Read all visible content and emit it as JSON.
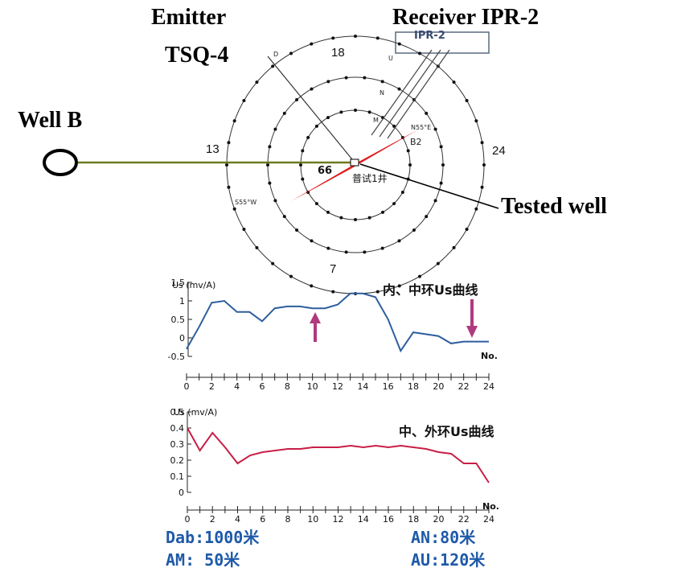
{
  "labels": {
    "emitter_line1": "Emitter",
    "emitter_line2": "TSQ-4",
    "receiver": "Receiver IPR-2",
    "receiver_box": "IPR-2",
    "well_b": "Well B",
    "tested_well": "Tested well"
  },
  "compass": {
    "n18": "18",
    "n13": "13",
    "n24": "24",
    "n7": "7",
    "d": "D",
    "u": "U",
    "n_mid": "N",
    "m": "M",
    "dir_ne": "N55°E",
    "dir_sw": "S55°W",
    "b2": "B2",
    "n66": "66",
    "well_name": "普试1井"
  },
  "colors": {
    "well_line": "#6e7a1e",
    "red_axis": "#e01e1e",
    "blue_curve": "#2e5e9e",
    "red_curve": "#c81e46",
    "arrow": "#b03a7e",
    "param_text": "#1f5aa8"
  },
  "chart_data": [
    {
      "type": "line",
      "title": "内、中环Us曲线",
      "ylabel": "Us (mv/A)",
      "xlabel": "No.",
      "ylim": [
        -0.5,
        1.5
      ],
      "yticks": [
        "1.5",
        "1",
        "0.5",
        "0",
        "-0.5"
      ],
      "xticks": [
        "0",
        "2",
        "4",
        "6",
        "8",
        "10",
        "12",
        "14",
        "16",
        "18",
        "20",
        "22",
        "24"
      ],
      "x": [
        0,
        1,
        2,
        3,
        4,
        5,
        6,
        7,
        8,
        9,
        10,
        11,
        12,
        13,
        14,
        15,
        16,
        17,
        18,
        19,
        20,
        21,
        22,
        23,
        24
      ],
      "values": [
        -0.3,
        0.3,
        0.95,
        1.0,
        0.7,
        0.7,
        0.45,
        0.8,
        0.85,
        0.85,
        0.8,
        0.8,
        0.9,
        1.2,
        1.2,
        1.1,
        0.5,
        -0.35,
        0.15,
        0.1,
        0.05,
        -0.15,
        -0.1,
        -0.1,
        -0.1
      ],
      "annotations": [
        "up-arrow near No. 11",
        "down-arrow near No. 22"
      ]
    },
    {
      "type": "line",
      "title": "中、外环Us曲线",
      "ylabel": "Us (mv/A)",
      "xlabel": "No.",
      "ylim": [
        0,
        0.5
      ],
      "yticks": [
        "0.5",
        "0.4",
        "0.3",
        "0.2",
        "0.1",
        "0"
      ],
      "xticks": [
        "0",
        "2",
        "4",
        "6",
        "8",
        "10",
        "12",
        "14",
        "16",
        "18",
        "20",
        "22",
        "24"
      ],
      "x": [
        0,
        1,
        2,
        3,
        4,
        5,
        6,
        7,
        8,
        9,
        10,
        11,
        12,
        13,
        14,
        15,
        16,
        17,
        18,
        19,
        20,
        21,
        22,
        23,
        24
      ],
      "values": [
        0.4,
        0.26,
        0.37,
        0.28,
        0.18,
        0.23,
        0.25,
        0.26,
        0.27,
        0.27,
        0.28,
        0.28,
        0.28,
        0.29,
        0.28,
        0.29,
        0.28,
        0.29,
        0.28,
        0.27,
        0.25,
        0.24,
        0.18,
        0.18,
        0.06
      ]
    }
  ],
  "params": {
    "dab": "Dab:1000米",
    "an": "AN:80米",
    "am": "AM: 50米",
    "au": "AU:120米"
  }
}
